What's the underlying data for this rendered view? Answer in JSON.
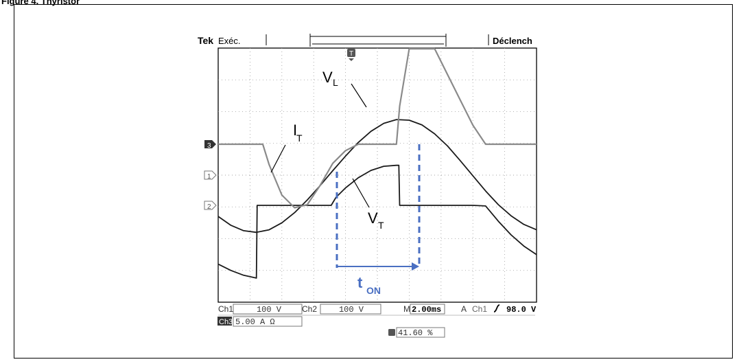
{
  "figure_title": "Figure 4. Thyristor",
  "scope": {
    "brand": "Tek",
    "run_state": "Exéc.",
    "trigger_status": "Déclench",
    "trigger_marker": "T",
    "channel_markers": [
      "3",
      "1",
      "2"
    ],
    "readouts": {
      "ch1_label": "Ch1",
      "ch1_scale": "100 V",
      "ch2_label": "Ch2",
      "ch2_scale": "100 V",
      "timebase_prefix": "M",
      "timebase": "2.00ms",
      "acq_mode": "A",
      "trig_source": "Ch1",
      "trig_slope_icon": "rising-edge-icon",
      "trig_level": "98.0 V",
      "ch3_label": "Ch3",
      "ch3_scale": "5.00 A Ω",
      "trig_position": "41.60 %"
    }
  },
  "annotations": {
    "vl_main": "V",
    "vl_sub": "L",
    "it_main": "I",
    "it_sub": "T",
    "vt_main": "V",
    "vt_sub": "T",
    "ton_main": "t",
    "ton_sub": "ON"
  },
  "colors": {
    "trace_dark": "#1a1a1a",
    "trace_gray": "#8a8a8a",
    "ton_marker": "#4a6fc2",
    "grid": "#9a9a9a"
  },
  "chart_data": {
    "type": "line",
    "x_unit": "ms",
    "xlim": [
      0,
      20
    ],
    "series": [
      {
        "name": "V_L",
        "channel": "Ch1",
        "color": "#1a1a1a",
        "x": [
          0,
          0.8,
          1.6,
          2.4,
          3.2,
          4.0,
          4.8,
          5.6,
          6.4,
          7.2,
          8.0,
          8.8,
          9.6,
          10.4,
          11.2,
          12.0,
          12.8,
          13.6,
          14.4,
          15.2,
          16.0,
          16.8,
          17.6,
          18.4,
          19.2,
          20.0
        ],
        "y": [
          -130,
          -158,
          -175,
          -180,
          -172,
          -150,
          -118,
          -78,
          -33,
          14,
          60,
          103,
          138,
          163,
          175,
          173,
          158,
          130,
          92,
          46,
          -2,
          -50,
          -93,
          -128,
          -155,
          -172
        ]
      },
      {
        "name": "V_T",
        "channel": "Ch2",
        "color": "#1a1a1a",
        "x": [
          0,
          0.8,
          1.6,
          2.4,
          2.45,
          3.2,
          4.0,
          4.8,
          5.6,
          6.4,
          7.1,
          7.4,
          8.0,
          8.8,
          9.6,
          10.4,
          11.2,
          11.35,
          11.4,
          12.0,
          12.8,
          13.6,
          14.4,
          15.2,
          16.0,
          16.8,
          17.6,
          18.4,
          19.2,
          20.0
        ],
        "y": [
          -185,
          -205,
          -220,
          -229,
          0,
          0,
          0,
          0,
          0,
          0,
          0,
          25,
          55,
          87,
          110,
          123,
          126,
          126,
          0,
          0,
          0,
          0,
          0,
          0,
          0,
          -2,
          -50,
          -93,
          -128,
          -155
        ]
      },
      {
        "name": "I_T",
        "channel": "Ch3",
        "color": "#8a8a8a",
        "x": [
          0,
          0.8,
          1.6,
          2.4,
          2.8,
          3.2,
          4.0,
          4.8,
          5.6,
          6.4,
          7.2,
          8.0,
          8.8,
          9.6,
          10.4,
          11.2,
          11.4,
          12.0,
          12.8,
          13.6,
          14.4,
          15.2,
          16.0,
          16.8,
          17.6,
          18.4,
          19.2,
          20.0
        ],
        "y": [
          0,
          0,
          0,
          0,
          0,
          -3.2,
          -8,
          -10,
          -9.5,
          -6.5,
          -3,
          -1,
          0,
          0,
          0,
          0,
          6,
          18,
          20,
          16,
          11,
          7,
          3,
          0,
          0,
          0,
          0,
          0
        ]
      }
    ],
    "ylim_channels": {
      "Ch1": [
        -400,
        400
      ],
      "Ch2": [
        -400,
        400
      ],
      "Ch3": [
        -20,
        20
      ]
    }
  }
}
